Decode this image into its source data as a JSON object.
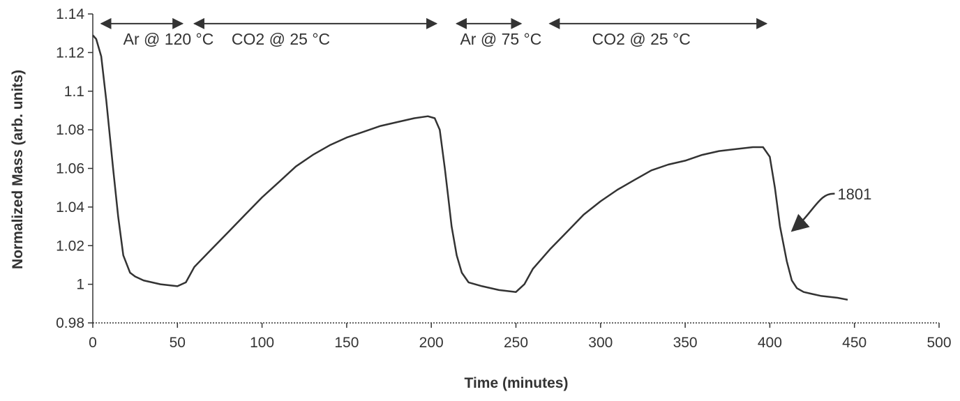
{
  "chart_data": {
    "type": "line",
    "title": "",
    "xlabel": "Time (minutes)",
    "ylabel": "Normalized Mass (arb. units)",
    "xlim": [
      0,
      500
    ],
    "ylim": [
      0.98,
      1.14
    ],
    "xticks": [
      0,
      50,
      100,
      150,
      200,
      250,
      300,
      350,
      400,
      450,
      500
    ],
    "yticks": [
      0.98,
      1,
      1.02,
      1.04,
      1.06,
      1.08,
      1.1,
      1.12,
      1.14
    ],
    "xtick_labels": [
      "0",
      "50",
      "100",
      "150",
      "200",
      "250",
      "300",
      "350",
      "400",
      "450",
      "500"
    ],
    "ytick_labels": [
      "0.98",
      "1",
      "1.02",
      "1.04",
      "1.06",
      "1.08",
      "1.1",
      "1.12",
      "1.14"
    ],
    "grid": false,
    "legend": "none",
    "line_color": "#333333",
    "series": [
      {
        "name": "",
        "x": [
          0,
          2,
          5,
          8,
          12,
          15,
          18,
          22,
          25,
          30,
          40,
          50,
          55,
          60,
          70,
          80,
          90,
          100,
          110,
          120,
          130,
          140,
          150,
          160,
          170,
          180,
          190,
          198,
          202,
          205,
          208,
          210,
          212,
          215,
          218,
          222,
          230,
          240,
          250,
          255,
          260,
          270,
          280,
          290,
          300,
          310,
          320,
          330,
          340,
          350,
          360,
          370,
          380,
          390,
          396,
          400,
          403,
          406,
          410,
          413,
          416,
          420,
          425,
          430,
          440,
          446
        ],
        "y": [
          1.129,
          1.127,
          1.118,
          1.095,
          1.06,
          1.035,
          1.015,
          1.006,
          1.004,
          1.002,
          1.0,
          0.999,
          1.001,
          1.009,
          1.018,
          1.027,
          1.036,
          1.045,
          1.053,
          1.061,
          1.067,
          1.072,
          1.076,
          1.079,
          1.082,
          1.084,
          1.086,
          1.087,
          1.086,
          1.08,
          1.06,
          1.045,
          1.03,
          1.015,
          1.006,
          1.001,
          0.999,
          0.997,
          0.996,
          1.0,
          1.008,
          1.018,
          1.027,
          1.036,
          1.043,
          1.049,
          1.054,
          1.059,
          1.062,
          1.064,
          1.067,
          1.069,
          1.07,
          1.071,
          1.071,
          1.066,
          1.05,
          1.03,
          1.012,
          1.002,
          0.998,
          0.996,
          0.995,
          0.994,
          0.993,
          0.992
        ]
      }
    ],
    "annotations": [
      {
        "text": "Ar @ 120 °C",
        "x": 18,
        "y": 1.127,
        "arrow_from_x": 5,
        "arrow_to_x": 53,
        "arrow_y": 1.135
      },
      {
        "text": "CO2 @ 25 °C",
        "x": 82,
        "y": 1.127,
        "arrow_from_x": 60,
        "arrow_to_x": 203,
        "arrow_y": 1.135
      },
      {
        "text": "Ar @ 75 °C",
        "x": 217,
        "y": 1.127,
        "arrow_from_x": 215,
        "arrow_to_x": 253,
        "arrow_y": 1.135
      },
      {
        "text": "CO2 @ 25 °C",
        "x": 295,
        "y": 1.127,
        "arrow_from_x": 270,
        "arrow_to_x": 398,
        "arrow_y": 1.135
      }
    ],
    "reference_label": {
      "text": "1801",
      "x": 440,
      "y": 1.044,
      "pointer_x": 412,
      "pointer_y": 1.027
    }
  }
}
